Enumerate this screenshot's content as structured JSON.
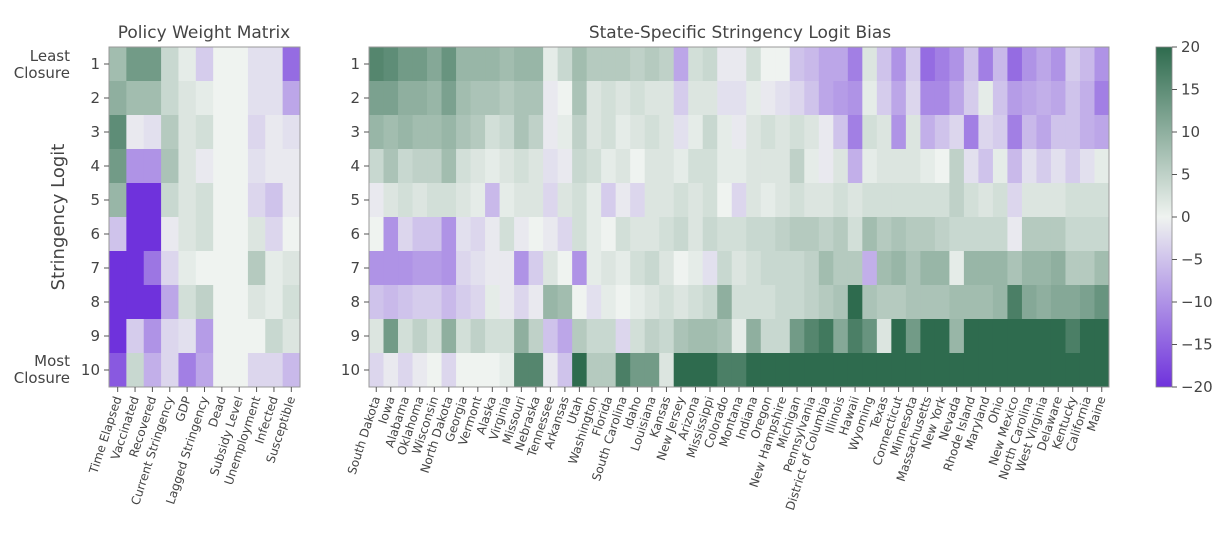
{
  "chart_data": [
    {
      "type": "heatmap",
      "title": "Policy Weight Matrix",
      "ylabel": "Stringency Logit",
      "y_labels": [
        "1",
        "2",
        "3",
        "4",
        "5",
        "6",
        "7",
        "8",
        "9",
        "10"
      ],
      "y_extreme_labels": {
        "top": [
          "Least",
          "Closure"
        ],
        "bottom": [
          "Most",
          "Closure"
        ]
      },
      "x_labels": [
        "Time Elapsed",
        "Vaccinated",
        "Recovered",
        "Current Stringency",
        "GDP",
        "Lagged Stringency",
        "Dead",
        "Subsidy Level",
        "Unemployment",
        "Infected",
        "Susceptible"
      ],
      "values": [
        [
          8,
          13,
          13,
          4,
          1,
          -4,
          0,
          0,
          -2,
          -2,
          -14
        ],
        [
          10,
          8,
          8,
          4,
          2,
          1,
          0,
          0,
          -2,
          -2,
          -8
        ],
        [
          15,
          -1,
          -2,
          6,
          2,
          3,
          0,
          0,
          -3,
          -1,
          -2
        ],
        [
          13,
          -10,
          -10,
          7,
          2,
          -1,
          0,
          0,
          -2,
          -1,
          -1
        ],
        [
          9,
          -20,
          -20,
          4,
          2,
          3,
          0,
          0,
          -3,
          -5,
          -1
        ],
        [
          -5,
          -20,
          -20,
          -1,
          2,
          3,
          0,
          0,
          2,
          -3,
          0
        ],
        [
          -20,
          -20,
          -13,
          -3,
          1,
          0,
          0,
          0,
          6,
          1,
          2
        ],
        [
          -20,
          -20,
          -20,
          -8,
          3,
          5,
          0,
          0,
          2,
          1,
          3
        ],
        [
          -20,
          -4,
          -10,
          -3,
          -2,
          -9,
          0,
          0,
          0,
          4,
          2
        ],
        [
          -16,
          4,
          -7,
          -3,
          -12,
          -8,
          0,
          0,
          -3,
          -3,
          -6
        ]
      ]
    },
    {
      "type": "heatmap",
      "title": "State-Specific Stringency Logit Bias",
      "y_labels": [
        "1",
        "2",
        "3",
        "4",
        "5",
        "6",
        "7",
        "8",
        "9",
        "10"
      ],
      "x_labels": [
        "South Dakota",
        "Iowa",
        "Alabama",
        "Oklahoma",
        "Wisconsin",
        "North Dakota",
        "Georgia",
        "Vermont",
        "Alaska",
        "Virginia",
        "Missouri",
        "Nebraska",
        "Tennessee",
        "Arkansas",
        "Utah",
        "Washington",
        "Florida",
        "South Carolina",
        "Idaho",
        "Louisiana",
        "Kansas",
        "New Jersey",
        "Arizona",
        "Mississippi",
        "Colorado",
        "Montana",
        "Indiana",
        "Oregon",
        "New Hampshire",
        "Michigan",
        "Pennsylvania",
        "District of Columbia",
        "Illinois",
        "Hawaii",
        "Wyoming",
        "Texas",
        "Connecticut",
        "Minnesota",
        "Massachusetts",
        "New York",
        "Nevada",
        "Rhode Island",
        "Maryland",
        "Ohio",
        "New Mexico",
        "North Carolina",
        "West Virginia",
        "Delaware",
        "Kentucky",
        "California",
        "Maine"
      ],
      "values": [
        [
          16,
          15,
          13,
          13,
          11,
          14,
          9,
          9,
          9,
          8,
          9,
          9,
          1,
          4,
          8,
          6,
          6,
          6,
          5,
          6,
          5,
          -8,
          3,
          4,
          -1,
          -1,
          3,
          0,
          0,
          -5,
          -6,
          -8,
          -8,
          -12,
          2,
          -5,
          -10,
          -4,
          -14,
          -12,
          -10,
          -5,
          -12,
          -6,
          -14,
          -10,
          -8,
          -10,
          -4,
          -6,
          -10
        ],
        [
          12,
          12,
          10,
          10,
          9,
          12,
          8,
          7,
          7,
          6,
          7,
          7,
          -1,
          0,
          7,
          2,
          3,
          2,
          3,
          2,
          2,
          -4,
          2,
          2,
          -2,
          -2,
          1,
          -1,
          -2,
          -3,
          -5,
          -8,
          -9,
          -10,
          1,
          -4,
          -8,
          -3,
          -11,
          -11,
          -8,
          -4,
          1,
          -5,
          -9,
          -8,
          -7,
          -8,
          -5,
          -7,
          -12
        ],
        [
          9,
          8,
          9,
          8,
          8,
          9,
          7,
          6,
          3,
          4,
          7,
          5,
          -1,
          1,
          5,
          2,
          3,
          1,
          2,
          3,
          2,
          -2,
          1,
          4,
          1,
          -1,
          2,
          3,
          2,
          3,
          2,
          -1,
          -5,
          -12,
          3,
          2,
          -10,
          2,
          -7,
          -5,
          -3,
          -12,
          -3,
          -4,
          -12,
          -6,
          -8,
          -5,
          -5,
          -7,
          -8
        ],
        [
          4,
          7,
          4,
          5,
          5,
          8,
          3,
          2,
          1,
          2,
          3,
          2,
          -2,
          -1,
          4,
          3,
          1,
          2,
          0,
          2,
          2,
          1,
          3,
          3,
          1,
          1,
          2,
          2,
          2,
          5,
          1,
          -1,
          2,
          -7,
          1,
          2,
          2,
          2,
          1,
          0,
          5,
          -2,
          -5,
          1,
          -6,
          -2,
          -4,
          -2,
          -4,
          -2,
          1
        ],
        [
          -1,
          2,
          3,
          2,
          3,
          3,
          2,
          1,
          -6,
          1,
          2,
          2,
          -3,
          2,
          3,
          1,
          -4,
          -1,
          -3,
          2,
          2,
          3,
          2,
          3,
          0,
          -3,
          2,
          1,
          2,
          3,
          2,
          2,
          3,
          2,
          3,
          3,
          3,
          3,
          3,
          3,
          5,
          3,
          2,
          3,
          -3,
          2,
          2,
          2,
          3,
          3,
          3
        ],
        [
          0,
          -10,
          -3,
          -5,
          -5,
          -10,
          -2,
          -3,
          -1,
          3,
          -1,
          0,
          -1,
          -3,
          3,
          1,
          0,
          3,
          2,
          2,
          3,
          4,
          2,
          4,
          3,
          3,
          4,
          4,
          5,
          6,
          6,
          5,
          6,
          3,
          8,
          6,
          7,
          6,
          6,
          5,
          4,
          4,
          4,
          4,
          -1,
          6,
          6,
          6,
          4,
          4,
          4
        ],
        [
          -10,
          -10,
          -10,
          -9,
          -9,
          -10,
          -3,
          -2,
          -1,
          -1,
          -10,
          -4,
          2,
          0,
          -10,
          1,
          2,
          1,
          3,
          4,
          2,
          0,
          1,
          -2,
          4,
          2,
          3,
          4,
          4,
          4,
          5,
          8,
          6,
          6,
          -7,
          8,
          9,
          7,
          9,
          9,
          1,
          9,
          9,
          9,
          7,
          9,
          9,
          10,
          6,
          6,
          8
        ],
        [
          -5,
          -6,
          -5,
          -4,
          -4,
          -6,
          -4,
          -3,
          1,
          -1,
          -3,
          -1,
          9,
          8,
          0,
          -2,
          1,
          0,
          1,
          2,
          3,
          2,
          3,
          4,
          10,
          3,
          3,
          3,
          4,
          4,
          5,
          6,
          7,
          20,
          7,
          6,
          6,
          7,
          7,
          7,
          8,
          8,
          8,
          9,
          17,
          11,
          10,
          11,
          11,
          12,
          14
        ],
        [
          2,
          13,
          3,
          5,
          3,
          10,
          3,
          5,
          3,
          3,
          10,
          5,
          -5,
          -8,
          6,
          4,
          4,
          -3,
          3,
          5,
          4,
          7,
          8,
          8,
          7,
          1,
          10,
          4,
          4,
          13,
          16,
          18,
          11,
          17,
          14,
          2,
          20,
          13,
          20,
          20,
          9,
          20,
          20,
          20,
          20,
          20,
          20,
          20,
          17,
          20,
          20
        ],
        [
          -3,
          -1,
          -3,
          -1,
          0,
          -3,
          0,
          0,
          0,
          1,
          16,
          16,
          -1,
          -5,
          20,
          6,
          6,
          17,
          13,
          13,
          2,
          20,
          20,
          20,
          17,
          17,
          20,
          20,
          20,
          20,
          20,
          20,
          20,
          20,
          20,
          20,
          20,
          20,
          20,
          20,
          20,
          20,
          20,
          20,
          20,
          20,
          20,
          20,
          20,
          20,
          20
        ]
      ]
    },
    {
      "type": "colorbar",
      "ticks": [
        20,
        15,
        10,
        5,
        0,
        -5,
        -10,
        -15,
        -20
      ],
      "tick_labels": [
        "20",
        "15",
        "10",
        "5",
        "0",
        "−5",
        "−10",
        "−15",
        "−20"
      ],
      "range": [
        -20,
        20
      ],
      "colors": {
        "low": "#6f32dc",
        "mid": "#eff3f0",
        "high": "#2e6b4e"
      }
    }
  ]
}
